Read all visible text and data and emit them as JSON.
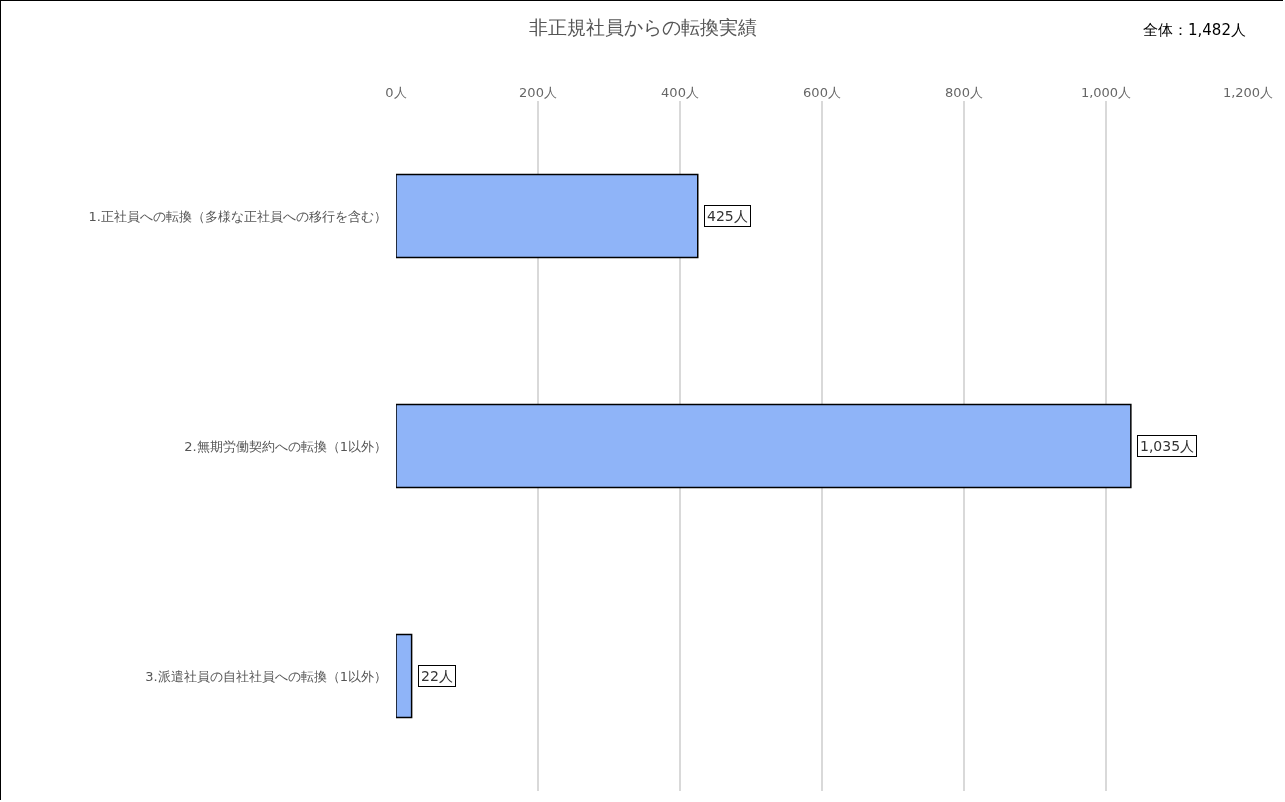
{
  "chart_data": {
    "type": "bar",
    "orientation": "horizontal",
    "title": "非正規社員からの転換実績",
    "annotations": [
      "全体：1,482人"
    ],
    "categories": [
      "1.正社員への転換（多様な正社員への移行を含む）",
      "2.無期労働契約への転換（1以外）",
      "3.派遣社員の自社社員への転換（1以外）"
    ],
    "values": [
      425,
      1035,
      22
    ],
    "value_labels": [
      "425人",
      "1,035人",
      "22人"
    ],
    "color": "#8fb4f8",
    "xlim": [
      0,
      1200
    ],
    "xticks": [
      {
        "value": 0,
        "label": "0人"
      },
      {
        "value": 200,
        "label": "200人"
      },
      {
        "value": 400,
        "label": "400人"
      },
      {
        "value": 600,
        "label": "600人"
      },
      {
        "value": 800,
        "label": "800人"
      },
      {
        "value": 1000,
        "label": "1,000人"
      },
      {
        "value": 1200,
        "label": "1,200人"
      }
    ],
    "grid": "x",
    "legend": false
  }
}
